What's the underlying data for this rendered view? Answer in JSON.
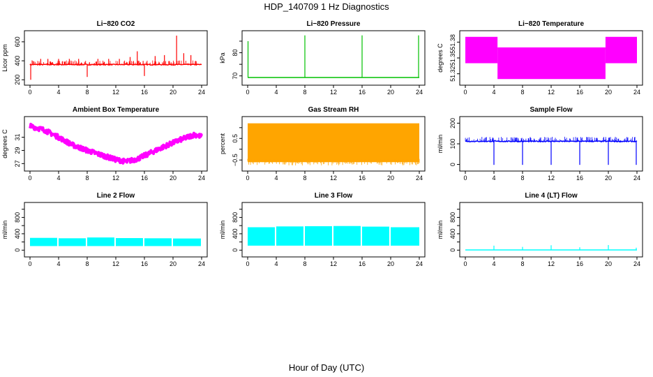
{
  "figure": {
    "title": "HDP_140709  1 Hz Diagnostics",
    "xlabel": "Hour of Day (UTC)"
  },
  "chart_data": [
    {
      "type": "line",
      "title": "Li−820 CO2",
      "ylabel": "Licor ppm",
      "color": "#ff0000",
      "xlim": [
        0,
        24
      ],
      "xticks": [
        0,
        4,
        8,
        12,
        16,
        20,
        24
      ],
      "ylim": [
        180,
        680
      ],
      "yticks": [
        200,
        400,
        600
      ],
      "yticklabels": [
        "200",
        "400",
        "600"
      ],
      "baseline": 360,
      "noise": 12,
      "spikes": [
        {
          "x": 0.1,
          "y": 200
        },
        {
          "x": 1.5,
          "y": 420
        },
        {
          "x": 2.5,
          "y": 420
        },
        {
          "x": 4.0,
          "y": 420
        },
        {
          "x": 5.5,
          "y": 420
        },
        {
          "x": 6.8,
          "y": 420
        },
        {
          "x": 8.0,
          "y": 230
        },
        {
          "x": 9.5,
          "y": 420
        },
        {
          "x": 11.0,
          "y": 420
        },
        {
          "x": 12.5,
          "y": 420
        },
        {
          "x": 14.0,
          "y": 440
        },
        {
          "x": 15.0,
          "y": 500
        },
        {
          "x": 16.0,
          "y": 240
        },
        {
          "x": 17.5,
          "y": 450
        },
        {
          "x": 18.8,
          "y": 460
        },
        {
          "x": 20.5,
          "y": 665
        },
        {
          "x": 21.5,
          "y": 480
        },
        {
          "x": 22.5,
          "y": 460
        }
      ]
    },
    {
      "type": "line",
      "title": "Li−820 Pressure",
      "ylabel": "kPa",
      "color": "#00c000",
      "xlim": [
        0,
        24
      ],
      "xticks": [
        0,
        4,
        8,
        12,
        16,
        20,
        24
      ],
      "ylim": [
        67.5,
        88
      ],
      "yticks": [
        70,
        75,
        80,
        85
      ],
      "yticklabels": [
        "70",
        "",
        "80",
        ""
      ],
      "baseline": 69.3,
      "spikes": [
        {
          "x": 0.05,
          "y": 85
        },
        {
          "x": 8.0,
          "y": 87.5
        },
        {
          "x": 16.0,
          "y": 87.5
        },
        {
          "x": 23.9,
          "y": 87.5
        }
      ]
    },
    {
      "type": "band",
      "title": "Li−820 Temperature",
      "ylabel": "degrees C",
      "color": "#ff00ff",
      "xlim": [
        0,
        24
      ],
      "xticks": [
        0,
        4,
        8,
        12,
        16,
        20,
        24
      ],
      "ylim": [
        51.305,
        51.395
      ],
      "yticks": [
        51.32,
        51.35,
        51.38
      ],
      "yticklabels": [
        "51.32",
        "51.35",
        "51.38"
      ],
      "segments": [
        {
          "x0": 0,
          "x1": 4.5,
          "lo": 51.34,
          "hi": 51.39
        },
        {
          "x0": 4.5,
          "x1": 19.6,
          "lo": 51.31,
          "hi": 51.37
        },
        {
          "x0": 19.6,
          "x1": 24,
          "lo": 51.34,
          "hi": 51.39
        }
      ]
    },
    {
      "type": "line",
      "title": "Ambient Box Temperature",
      "ylabel": "degrees C",
      "color": "#ff00ff",
      "xlim": [
        0,
        24
      ],
      "xticks": [
        0,
        4,
        8,
        12,
        16,
        20,
        24
      ],
      "ylim": [
        26.4,
        33.6
      ],
      "yticks": [
        27,
        29,
        31
      ],
      "yticklabels": [
        "27",
        "29",
        "31"
      ],
      "x": [
        0,
        2,
        4,
        6,
        8,
        10,
        12,
        13.5,
        15,
        17,
        19,
        21,
        23,
        24
      ],
      "y": [
        32.7,
        32.1,
        31.0,
        29.8,
        29.0,
        28.3,
        27.6,
        27.3,
        27.7,
        28.7,
        29.7,
        30.6,
        31.4,
        31.1
      ],
      "noise": 0.35
    },
    {
      "type": "band",
      "title": "Gas Stream RH",
      "ylabel": "percent",
      "color": "#ffa500",
      "xlim": [
        0,
        24
      ],
      "xticks": [
        0,
        4,
        8,
        12,
        16,
        20,
        24
      ],
      "ylim": [
        -0.85,
        1.35
      ],
      "yticks": [
        -0.5,
        0,
        0.5,
        1
      ],
      "yticklabels": [
        "−0.5",
        "",
        "0.5",
        ""
      ],
      "segments": [
        {
          "x0": 0,
          "x1": 24,
          "lo": -0.6,
          "hi": 1.2
        }
      ]
    },
    {
      "type": "line",
      "title": "Sample Flow",
      "ylabel": "ml/min",
      "color": "#0000ff",
      "xlim": [
        0,
        24
      ],
      "xticks": [
        0,
        4,
        8,
        12,
        16,
        20,
        24
      ],
      "ylim": [
        -15,
        215
      ],
      "yticks": [
        0,
        100,
        200
      ],
      "yticklabels": [
        "0",
        "100",
        "200"
      ],
      "baseline": 112,
      "noise": 6,
      "spikes": [
        {
          "x": 4.0,
          "y": -2
        },
        {
          "x": 8.0,
          "y": -2
        },
        {
          "x": 12.0,
          "y": -2
        },
        {
          "x": 16.0,
          "y": -2
        },
        {
          "x": 20.0,
          "y": -2
        },
        {
          "x": 23.9,
          "y": -2
        }
      ]
    },
    {
      "type": "band",
      "title": "Line 2 Flow",
      "ylabel": "ml/min",
      "color": "#00ffff",
      "xlim": [
        0,
        24
      ],
      "xticks": [
        0,
        4,
        8,
        12,
        16,
        20,
        24
      ],
      "ylim": [
        -80,
        1080
      ],
      "yticks": [
        0,
        200,
        400,
        600,
        800,
        1000
      ],
      "yticklabels": [
        "0",
        "",
        "400",
        "",
        "800",
        ""
      ],
      "segments": [
        {
          "x0": 0,
          "x1": 3.8,
          "lo": 100,
          "hi": 300
        },
        {
          "x0": 4.0,
          "x1": 7.8,
          "lo": 100,
          "hi": 290
        },
        {
          "x0": 8.0,
          "x1": 11.8,
          "lo": 100,
          "hi": 310
        },
        {
          "x0": 12.0,
          "x1": 15.8,
          "lo": 100,
          "hi": 295
        },
        {
          "x0": 16.0,
          "x1": 19.8,
          "lo": 100,
          "hi": 290
        },
        {
          "x0": 20.0,
          "x1": 23.9,
          "lo": 100,
          "hi": 285
        }
      ]
    },
    {
      "type": "band",
      "title": "Line 3 Flow",
      "ylabel": "ml/min",
      "color": "#00ffff",
      "xlim": [
        0,
        24
      ],
      "xticks": [
        0,
        4,
        8,
        12,
        16,
        20,
        24
      ],
      "ylim": [
        -80,
        1080
      ],
      "yticks": [
        0,
        200,
        400,
        600,
        800,
        1000
      ],
      "yticklabels": [
        "0",
        "",
        "400",
        "",
        "800",
        ""
      ],
      "segments": [
        {
          "x0": 0,
          "x1": 3.8,
          "lo": 110,
          "hi": 560
        },
        {
          "x0": 4.0,
          "x1": 7.8,
          "lo": 110,
          "hi": 580
        },
        {
          "x0": 8.0,
          "x1": 11.8,
          "lo": 110,
          "hi": 585
        },
        {
          "x0": 12.0,
          "x1": 15.8,
          "lo": 110,
          "hi": 590
        },
        {
          "x0": 16.0,
          "x1": 19.8,
          "lo": 110,
          "hi": 575
        },
        {
          "x0": 20.0,
          "x1": 24,
          "lo": 110,
          "hi": 560
        }
      ]
    },
    {
      "type": "line",
      "title": "Line 4 (LT) Flow",
      "ylabel": "ml/min",
      "color": "#00ffff",
      "xlim": [
        0,
        24
      ],
      "xticks": [
        0,
        4,
        8,
        12,
        16,
        20,
        24
      ],
      "ylim": [
        -80,
        1080
      ],
      "yticks": [
        0,
        200,
        400,
        600,
        800,
        1000
      ],
      "yticklabels": [
        "0",
        "",
        "400",
        "",
        "800",
        ""
      ],
      "baseline": 5,
      "spikes": [
        {
          "x": 4.0,
          "y": 110
        },
        {
          "x": 8.0,
          "y": 80
        },
        {
          "x": 12.0,
          "y": 120
        },
        {
          "x": 16.0,
          "y": 70
        },
        {
          "x": 20.0,
          "y": 125
        },
        {
          "x": 23.9,
          "y": 60
        }
      ]
    }
  ]
}
